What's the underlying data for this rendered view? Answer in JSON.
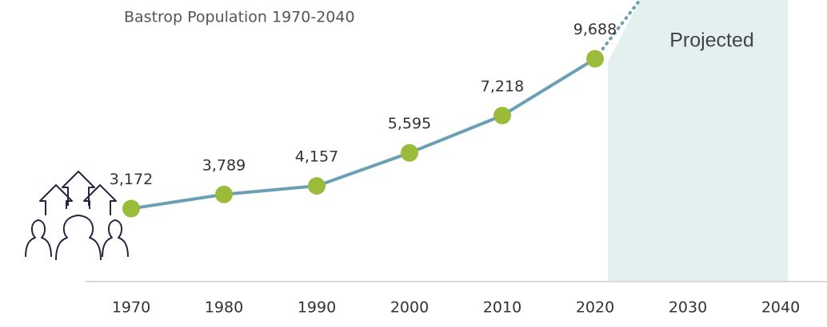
{
  "chart_data": {
    "type": "line",
    "title": "Bastrop Population 1970-2040",
    "annotation": "Projected",
    "categories": [
      "1970",
      "1980",
      "1990",
      "2000",
      "2010",
      "2020",
      "2030",
      "2040"
    ],
    "values": [
      3172,
      3789,
      4157,
      5595,
      7218,
      9688,
      null,
      null
    ],
    "value_labels": [
      "3,172",
      "3,789",
      "4,157",
      "5,595",
      "7,218",
      "9,688",
      null,
      null
    ],
    "color": "#6a9fb5",
    "marker_color": "#9bbb3b",
    "ylim": [
      0,
      12000
    ]
  }
}
